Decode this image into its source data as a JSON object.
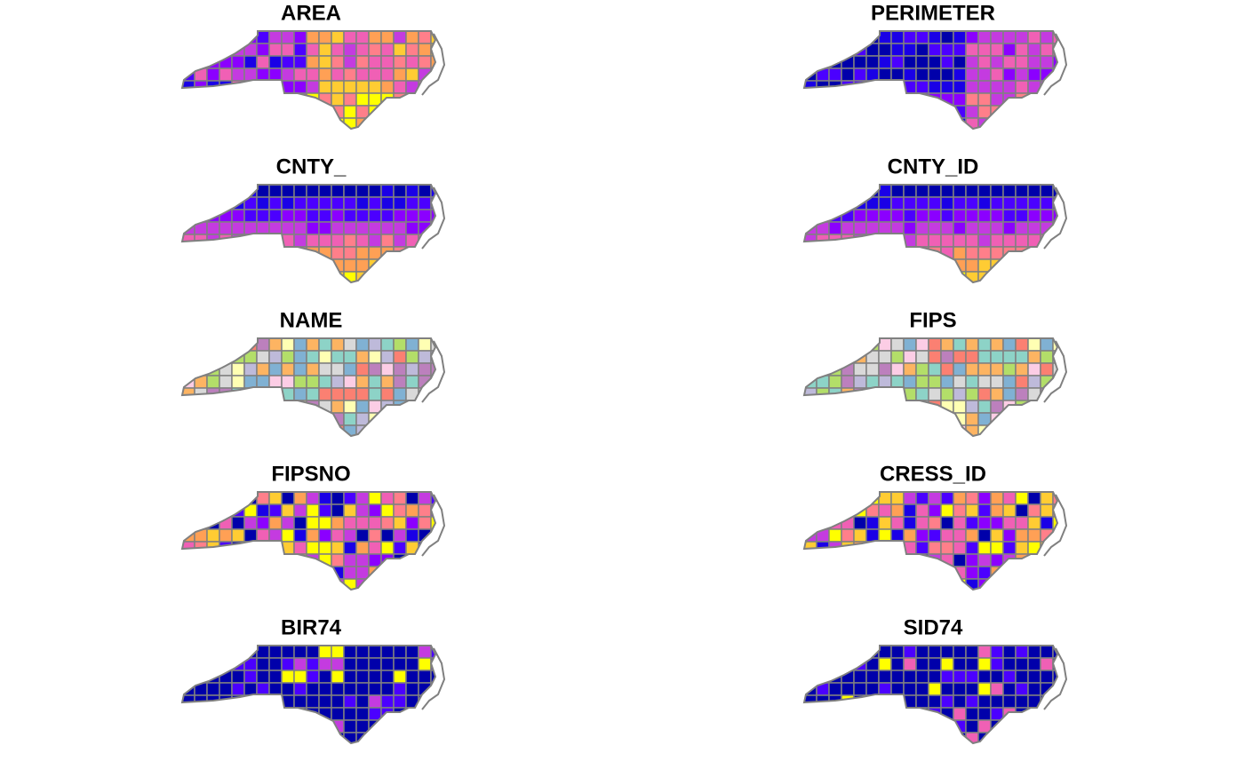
{
  "panels": [
    {
      "title": "AREA"
    },
    {
      "title": "PERIMETER"
    },
    {
      "title": "CNTY_"
    },
    {
      "title": "CNTY_ID"
    },
    {
      "title": "NAME"
    },
    {
      "title": "FIPS"
    },
    {
      "title": "FIPSNO"
    },
    {
      "title": "CRESS_ID"
    },
    {
      "title": "BIR74"
    },
    {
      "title": "SID74"
    }
  ]
}
